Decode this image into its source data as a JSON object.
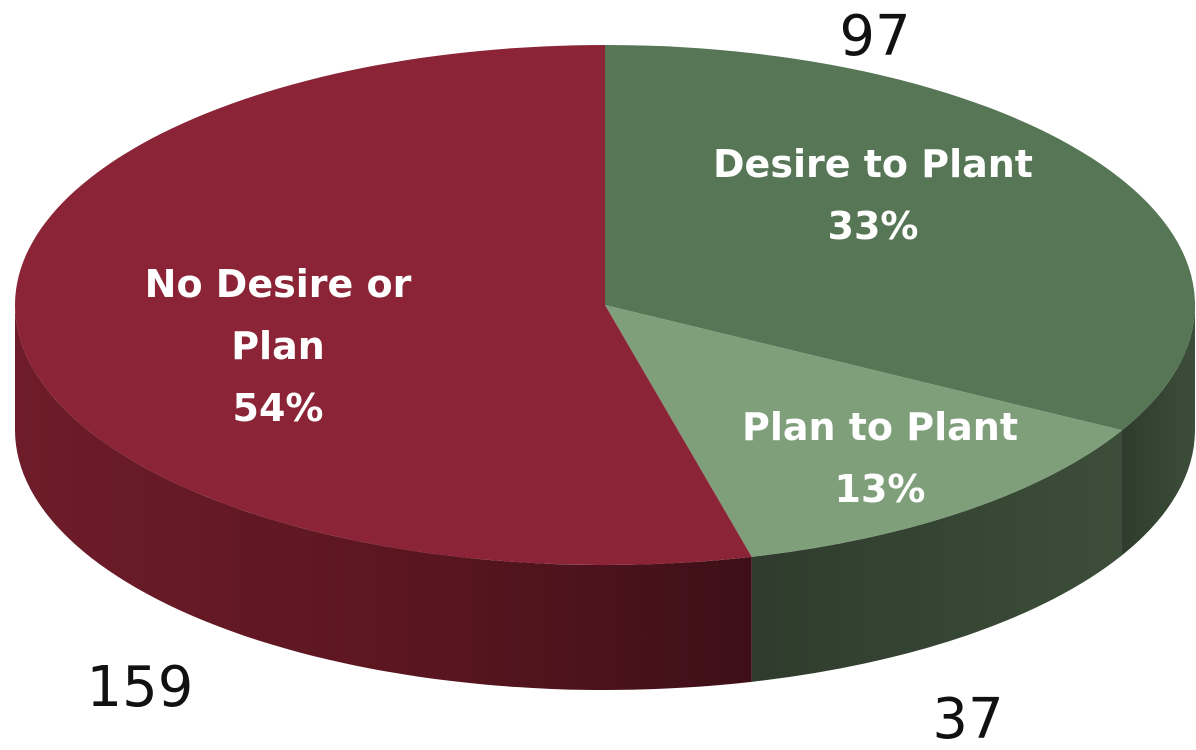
{
  "chart_data": {
    "type": "pie",
    "style": "3d",
    "title": "",
    "slices": [
      {
        "name": "Desire to Plant",
        "label_lines": [
          "Desire to Plant",
          "33%"
        ],
        "percent": 33,
        "count": 97,
        "count_label": "97",
        "top_color": "#567655",
        "side_color": "#3f5a3e"
      },
      {
        "name": "Plan to Plant",
        "label_lines": [
          "Plan to Plant",
          "13%"
        ],
        "percent": 13,
        "count": 37,
        "count_label": "37",
        "top_color": "#7f9f7b",
        "side_color": "#33432f"
      },
      {
        "name": "No Desire or Plan",
        "label_lines": [
          "No Desire or",
          "Plan",
          "54%"
        ],
        "percent": 54,
        "count": 159,
        "count_label": "159",
        "top_color": "#8b2437",
        "side_color": "#5e1824"
      }
    ]
  }
}
